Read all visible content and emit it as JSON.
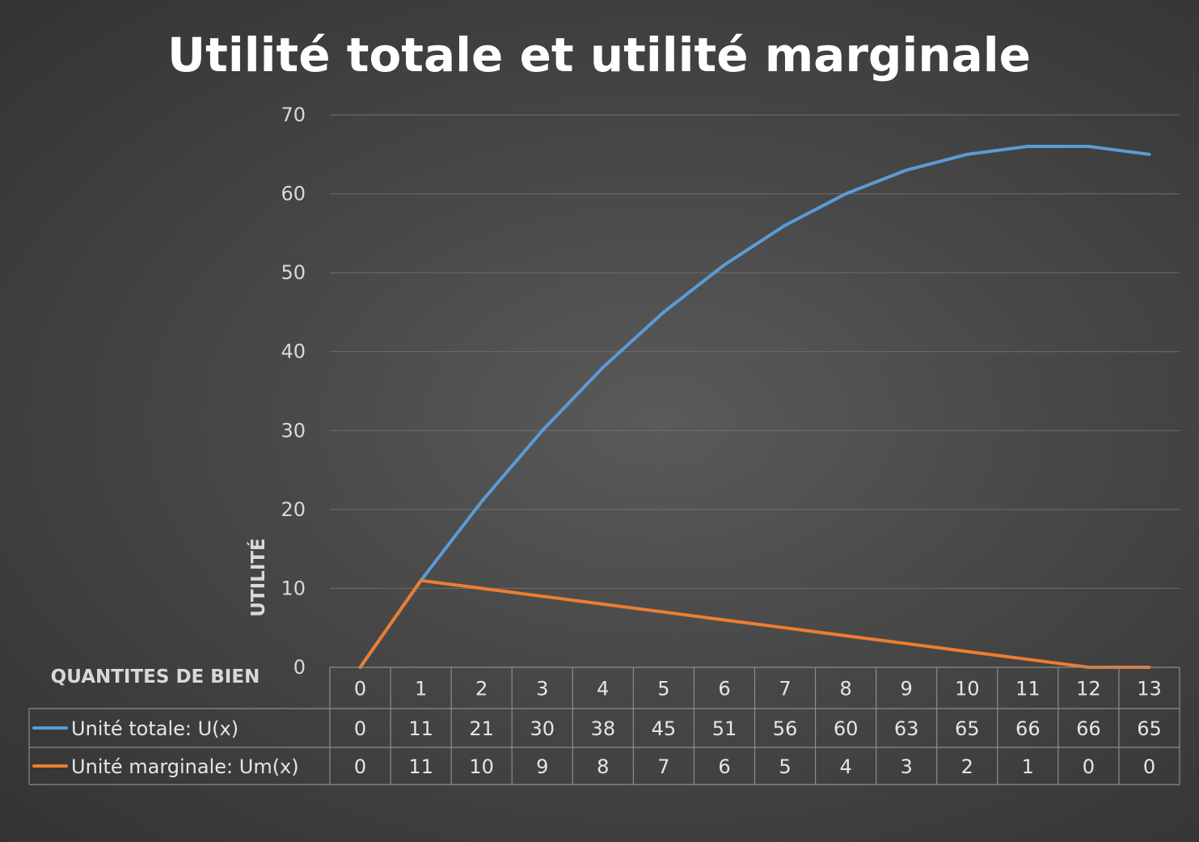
{
  "chart_data": {
    "type": "line",
    "title": "Utilité totale et utilité marginale",
    "xlabel": "QUANTITES DE BIEN",
    "ylabel": "UTILITÉ",
    "categories": [
      "0",
      "1",
      "2",
      "3",
      "4",
      "5",
      "6",
      "7",
      "8",
      "9",
      "10",
      "11",
      "12",
      "13"
    ],
    "y_ticks": [
      "0",
      "10",
      "20",
      "30",
      "40",
      "50",
      "60",
      "70"
    ],
    "ylim": [
      0,
      70
    ],
    "grid": true,
    "legend": "data-table",
    "series": [
      {
        "name": "Unité totale: U(x)",
        "color": "#5b9bd5",
        "values": [
          0,
          11,
          21,
          30,
          38,
          45,
          51,
          56,
          60,
          63,
          65,
          66,
          66,
          65
        ]
      },
      {
        "name": "Unité marginale: Um(x)",
        "color": "#ed7d31",
        "values": [
          0,
          11,
          10,
          9,
          8,
          7,
          6,
          5,
          4,
          3,
          2,
          1,
          0,
          0
        ]
      }
    ]
  }
}
